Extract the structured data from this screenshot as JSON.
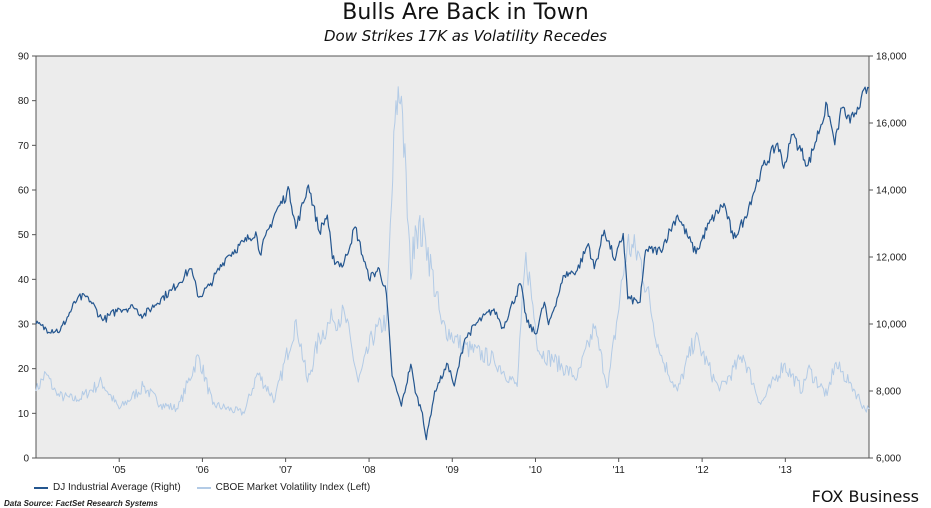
{
  "title": "Bulls Are Back in Town",
  "subtitle": "Dow Strikes 17K as Volatility Recedes",
  "brand": "FOX Business",
  "source": "Data Source: FactSet Research Systems",
  "colors": {
    "dow": "#24568f",
    "vix": "#b3cbe6",
    "plot_bg": "#ececec"
  },
  "chart_data": {
    "type": "line",
    "x_domain": [
      "2004-07-01",
      "2014-07-03"
    ],
    "x_ticks": [
      {
        "label": "'05",
        "date": "2005-07-01"
      },
      {
        "label": "'06",
        "date": "2006-07-01"
      },
      {
        "label": "'07",
        "date": "2007-07-01"
      },
      {
        "label": "'08",
        "date": "2008-07-01"
      },
      {
        "label": "'09",
        "date": "2009-07-01"
      },
      {
        "label": "'10",
        "date": "2010-07-01"
      },
      {
        "label": "'11",
        "date": "2011-07-01"
      },
      {
        "label": "'12",
        "date": "2012-07-01"
      },
      {
        "label": "'13",
        "date": "2013-07-01"
      }
    ],
    "y_left": {
      "range": [
        0,
        90
      ],
      "ticks": [
        "0",
        "10",
        "20",
        "30",
        "40",
        "50",
        "60",
        "70",
        "80",
        "90"
      ]
    },
    "y_right": {
      "range": [
        6000,
        18000
      ],
      "ticks": [
        "6,000",
        "8,000",
        "10,000",
        "12,000",
        "14,000",
        "16,000",
        "18,000"
      ]
    },
    "grid": false,
    "legend_position": "bottom-left",
    "series": [
      {
        "name": "DJ Industrial Average (Right)",
        "axis": "right",
        "points": [
          [
            "2004-07-01",
            10000
          ],
          [
            "2004-08-15",
            9850
          ],
          [
            "2004-10-15",
            9800
          ],
          [
            "2004-12-31",
            10780
          ],
          [
            "2005-02-15",
            10800
          ],
          [
            "2005-04-20",
            10100
          ],
          [
            "2005-07-01",
            10450
          ],
          [
            "2005-09-01",
            10500
          ],
          [
            "2005-10-15",
            10250
          ],
          [
            "2005-12-31",
            10750
          ],
          [
            "2006-02-15",
            11000
          ],
          [
            "2006-05-10",
            11650
          ],
          [
            "2006-06-15",
            10800
          ],
          [
            "2006-08-01",
            11150
          ],
          [
            "2006-10-15",
            12000
          ],
          [
            "2006-12-31",
            12450
          ],
          [
            "2007-02-20",
            12750
          ],
          [
            "2007-03-10",
            12100
          ],
          [
            "2007-05-15",
            13300
          ],
          [
            "2007-07-17",
            14000
          ],
          [
            "2007-08-15",
            12850
          ],
          [
            "2007-10-09",
            14150
          ],
          [
            "2007-11-26",
            12750
          ],
          [
            "2007-12-31",
            13250
          ],
          [
            "2008-01-22",
            11950
          ],
          [
            "2008-03-10",
            11750
          ],
          [
            "2008-05-01",
            12900
          ],
          [
            "2008-06-30",
            11350
          ],
          [
            "2008-08-15",
            11650
          ],
          [
            "2008-09-15",
            10900
          ],
          [
            "2008-10-10",
            8450
          ],
          [
            "2008-11-20",
            7550
          ],
          [
            "2008-12-31",
            8800
          ],
          [
            "2009-01-20",
            7950
          ],
          [
            "2009-02-20",
            7350
          ],
          [
            "2009-03-09",
            6550
          ],
          [
            "2009-04-15",
            8000
          ],
          [
            "2009-06-12",
            8800
          ],
          [
            "2009-07-10",
            8150
          ],
          [
            "2009-08-25",
            9550
          ],
          [
            "2009-10-20",
            10050
          ],
          [
            "2009-12-31",
            10450
          ],
          [
            "2010-02-08",
            9900
          ],
          [
            "2010-04-26",
            11200
          ],
          [
            "2010-05-25",
            10050
          ],
          [
            "2010-07-02",
            9700
          ],
          [
            "2010-08-09",
            10650
          ],
          [
            "2010-08-27",
            9980
          ],
          [
            "2010-11-05",
            11450
          ],
          [
            "2010-12-31",
            11600
          ],
          [
            "2011-02-18",
            12400
          ],
          [
            "2011-03-16",
            11650
          ],
          [
            "2011-04-29",
            12800
          ],
          [
            "2011-06-15",
            11900
          ],
          [
            "2011-07-21",
            12700
          ],
          [
            "2011-08-10",
            10750
          ],
          [
            "2011-10-03",
            10650
          ],
          [
            "2011-10-27",
            12200
          ],
          [
            "2011-12-31",
            12200
          ],
          [
            "2012-03-15",
            13250
          ],
          [
            "2012-06-04",
            12100
          ],
          [
            "2012-07-31",
            13000
          ],
          [
            "2012-10-05",
            13600
          ],
          [
            "2012-11-15",
            12550
          ],
          [
            "2012-12-31",
            13100
          ],
          [
            "2013-03-15",
            14550
          ],
          [
            "2013-05-28",
            15400
          ],
          [
            "2013-06-24",
            14650
          ],
          [
            "2013-08-02",
            15650
          ],
          [
            "2013-10-09",
            14750
          ],
          [
            "2013-12-31",
            16550
          ],
          [
            "2014-02-03",
            15350
          ],
          [
            "2014-03-07",
            16450
          ],
          [
            "2014-04-11",
            16000
          ],
          [
            "2014-05-30",
            16750
          ],
          [
            "2014-07-03",
            17050
          ]
        ]
      },
      {
        "name": "CBOE Market Volatility Index (Left)",
        "axis": "left",
        "points": [
          [
            "2004-07-01",
            15
          ],
          [
            "2004-08-13",
            19
          ],
          [
            "2004-10-01",
            14
          ],
          [
            "2004-12-31",
            13
          ],
          [
            "2005-04-15",
            17
          ],
          [
            "2005-07-01",
            11
          ],
          [
            "2005-10-15",
            16
          ],
          [
            "2005-12-31",
            12
          ],
          [
            "2006-03-15",
            11
          ],
          [
            "2006-06-14",
            23
          ],
          [
            "2006-08-15",
            12
          ],
          [
            "2006-12-31",
            10
          ],
          [
            "2007-02-27",
            19
          ],
          [
            "2007-05-15",
            13
          ],
          [
            "2007-08-16",
            31
          ],
          [
            "2007-10-05",
            17
          ],
          [
            "2007-11-26",
            27
          ],
          [
            "2008-01-22",
            31
          ],
          [
            "2008-03-17",
            32
          ],
          [
            "2008-05-15",
            17
          ],
          [
            "2008-07-15",
            27
          ],
          [
            "2008-09-15",
            31
          ],
          [
            "2008-10-08",
            57
          ],
          [
            "2008-10-27",
            80
          ],
          [
            "2008-11-20",
            81
          ],
          [
            "2008-12-31",
            40
          ],
          [
            "2009-01-20",
            52
          ],
          [
            "2009-03-06",
            49
          ],
          [
            "2009-05-15",
            30
          ],
          [
            "2009-08-15",
            25
          ],
          [
            "2009-12-31",
            22
          ],
          [
            "2010-04-12",
            16
          ],
          [
            "2010-05-20",
            46
          ],
          [
            "2010-07-15",
            24
          ],
          [
            "2010-09-15",
            22
          ],
          [
            "2010-12-31",
            18
          ],
          [
            "2011-03-16",
            29
          ],
          [
            "2011-05-15",
            16
          ],
          [
            "2011-08-08",
            48
          ],
          [
            "2011-10-03",
            45
          ],
          [
            "2011-12-31",
            23
          ],
          [
            "2012-03-15",
            15
          ],
          [
            "2012-06-01",
            27
          ],
          [
            "2012-09-15",
            15
          ],
          [
            "2012-12-28",
            23
          ],
          [
            "2013-03-15",
            12
          ],
          [
            "2013-06-24",
            21
          ],
          [
            "2013-09-15",
            15
          ],
          [
            "2013-10-08",
            20
          ],
          [
            "2013-12-31",
            14
          ],
          [
            "2014-02-03",
            21
          ],
          [
            "2014-04-11",
            17
          ],
          [
            "2014-06-15",
            11
          ],
          [
            "2014-07-03",
            11
          ]
        ]
      }
    ]
  }
}
